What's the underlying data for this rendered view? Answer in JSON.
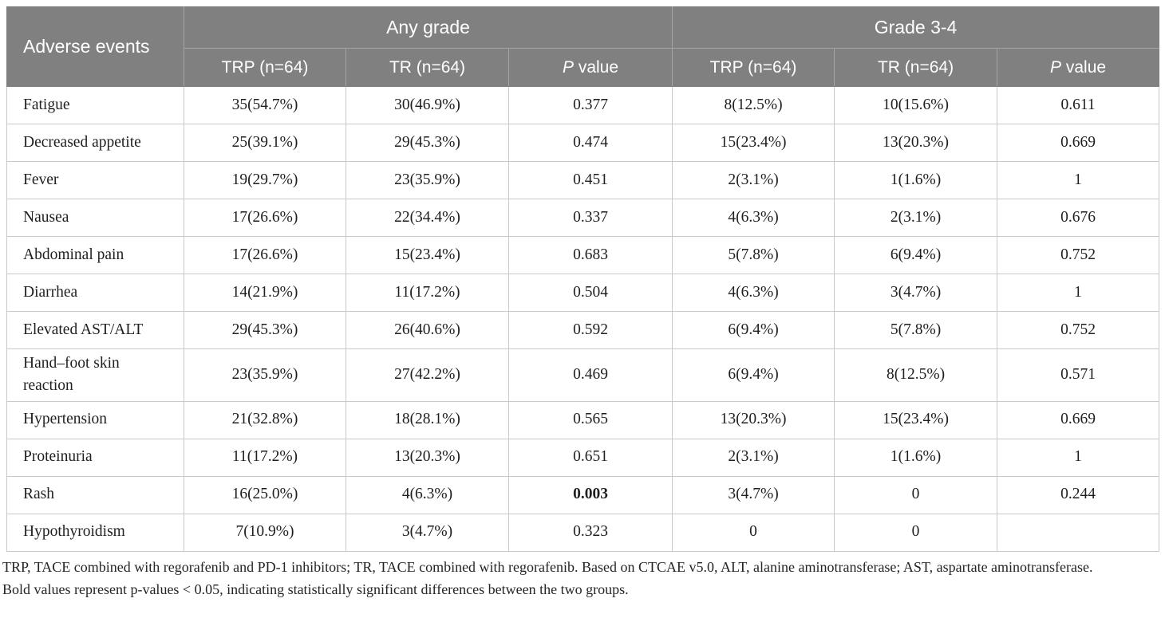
{
  "table": {
    "corner_header": "Adverse events",
    "groups": [
      {
        "label": "Any grade",
        "columns": [
          "TRP (n=64)",
          "TR (n=64)",
          "P value"
        ]
      },
      {
        "label": "Grade 3-4",
        "columns": [
          "TRP (n=64)",
          "TR (n=64)",
          "P value"
        ]
      }
    ],
    "rows": [
      {
        "name": "Fatigue",
        "any_trp": "35(54.7%)",
        "any_tr": "30(46.9%)",
        "any_p": "0.377",
        "g34_trp": "8(12.5%)",
        "g34_tr": "10(15.6%)",
        "g34_p": "0.611"
      },
      {
        "name": "Decreased appetite",
        "any_trp": "25(39.1%)",
        "any_tr": "29(45.3%)",
        "any_p": "0.474",
        "g34_trp": "15(23.4%)",
        "g34_tr": "13(20.3%)",
        "g34_p": "0.669"
      },
      {
        "name": "Fever",
        "any_trp": "19(29.7%)",
        "any_tr": "23(35.9%)",
        "any_p": "0.451",
        "g34_trp": "2(3.1%)",
        "g34_tr": "1(1.6%)",
        "g34_p": "1"
      },
      {
        "name": "Nausea",
        "any_trp": "17(26.6%)",
        "any_tr": "22(34.4%)",
        "any_p": "0.337",
        "g34_trp": "4(6.3%)",
        "g34_tr": "2(3.1%)",
        "g34_p": "0.676"
      },
      {
        "name": "Abdominal pain",
        "any_trp": "17(26.6%)",
        "any_tr": "15(23.4%)",
        "any_p": "0.683",
        "g34_trp": "5(7.8%)",
        "g34_tr": "6(9.4%)",
        "g34_p": "0.752"
      },
      {
        "name": "Diarrhea",
        "any_trp": "14(21.9%)",
        "any_tr": "11(17.2%)",
        "any_p": "0.504",
        "g34_trp": "4(6.3%)",
        "g34_tr": "3(4.7%)",
        "g34_p": "1"
      },
      {
        "name": "Elevated AST/ALT",
        "any_trp": "29(45.3%)",
        "any_tr": "26(40.6%)",
        "any_p": "0.592",
        "g34_trp": "6(9.4%)",
        "g34_tr": "5(7.8%)",
        "g34_p": "0.752"
      },
      {
        "name": "Hand–foot skin reaction",
        "any_trp": "23(35.9%)",
        "any_tr": "27(42.2%)",
        "any_p": "0.469",
        "g34_trp": "6(9.4%)",
        "g34_tr": "8(12.5%)",
        "g34_p": "0.571"
      },
      {
        "name": "Hypertension",
        "any_trp": "21(32.8%)",
        "any_tr": "18(28.1%)",
        "any_p": "0.565",
        "g34_trp": "13(20.3%)",
        "g34_tr": "15(23.4%)",
        "g34_p": "0.669"
      },
      {
        "name": "Proteinuria",
        "any_trp": "11(17.2%)",
        "any_tr": "13(20.3%)",
        "any_p": "0.651",
        "g34_trp": "2(3.1%)",
        "g34_tr": "1(1.6%)",
        "g34_p": "1"
      },
      {
        "name": "Rash",
        "any_trp": "16(25.0%)",
        "any_tr": "4(6.3%)",
        "any_p": "0.003",
        "bold": [
          "any_p"
        ],
        "g34_trp": "3(4.7%)",
        "g34_tr": "0",
        "g34_p": "0.244"
      },
      {
        "name": "Hypothyroidism",
        "any_trp": "7(10.9%)",
        "any_tr": "3(4.7%)",
        "any_p": "0.323",
        "g34_trp": "0",
        "g34_tr": "0",
        "g34_p": ""
      }
    ]
  },
  "footnote": {
    "line1": "TRP, TACE combined with regorafenib and PD-1 inhibitors; TR, TACE combined with regorafenib. Based on CTCAE v5.0, ALT, alanine aminotransferase; AST, aspartate aminotransferase.",
    "line2": "Bold values represent p-values < 0.05, indicating statistically significant differences between the two groups."
  }
}
